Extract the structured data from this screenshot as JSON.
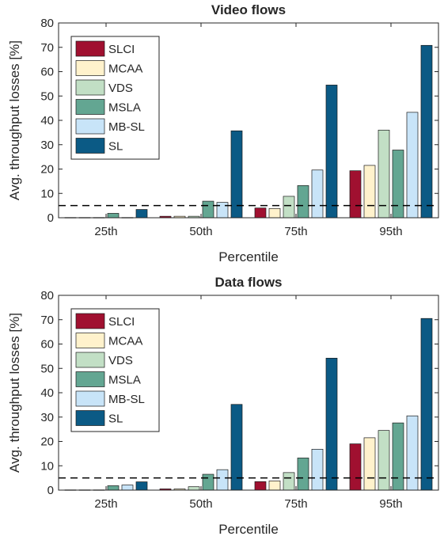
{
  "chart_data": [
    {
      "type": "bar",
      "title": "Video flows",
      "xlabel": "Percentile",
      "ylabel": "Avg. throughput losses [%]",
      "categories": [
        "25th",
        "50th",
        "75th",
        "95th"
      ],
      "ylim": [
        0,
        80
      ],
      "yticks": [
        "0",
        "10",
        "20",
        "30",
        "40",
        "50",
        "60",
        "70",
        "80"
      ],
      "reference_line": 5,
      "legend_position": "top-left",
      "grid": false,
      "series": [
        {
          "name": "SLCI",
          "color": "#a01030",
          "values": [
            0.1,
            0.6,
            4.0,
            19.3
          ]
        },
        {
          "name": "MCAA",
          "color": "#fff2cc",
          "values": [
            0.1,
            0.6,
            3.8,
            21.5
          ]
        },
        {
          "name": "VDS",
          "color": "#c2dfc5",
          "values": [
            0.1,
            0.6,
            8.8,
            36.0
          ]
        },
        {
          "name": "MSLA",
          "color": "#63a692",
          "values": [
            1.8,
            6.8,
            13.2,
            27.8
          ]
        },
        {
          "name": "MB-SL",
          "color": "#c8e4f8",
          "values": [
            0.1,
            6.3,
            19.6,
            43.3
          ]
        },
        {
          "name": "SL",
          "color": "#0b5a85",
          "values": [
            3.4,
            35.7,
            54.5,
            70.8
          ]
        }
      ]
    },
    {
      "type": "bar",
      "title": "Data flows",
      "xlabel": "Percentile",
      "ylabel": "Avg. throughput losses [%]",
      "categories": [
        "25th",
        "50th",
        "75th",
        "95th"
      ],
      "ylim": [
        0,
        80
      ],
      "yticks": [
        "0",
        "10",
        "20",
        "30",
        "40",
        "50",
        "60",
        "70",
        "80"
      ],
      "reference_line": 5,
      "legend_position": "top-left",
      "grid": false,
      "series": [
        {
          "name": "SLCI",
          "color": "#a01030",
          "values": [
            0.1,
            0.5,
            3.5,
            19.0
          ]
        },
        {
          "name": "MCAA",
          "color": "#fff2cc",
          "values": [
            0.1,
            0.5,
            3.8,
            21.5
          ]
        },
        {
          "name": "VDS",
          "color": "#c2dfc5",
          "values": [
            0.1,
            1.4,
            7.2,
            24.5
          ]
        },
        {
          "name": "MSLA",
          "color": "#63a692",
          "values": [
            1.8,
            6.5,
            13.2,
            27.6
          ]
        },
        {
          "name": "MB-SL",
          "color": "#c8e4f8",
          "values": [
            2.1,
            8.4,
            16.8,
            30.5
          ]
        },
        {
          "name": "SL",
          "color": "#0b5a85",
          "values": [
            3.4,
            35.2,
            54.2,
            70.5
          ]
        }
      ]
    }
  ]
}
